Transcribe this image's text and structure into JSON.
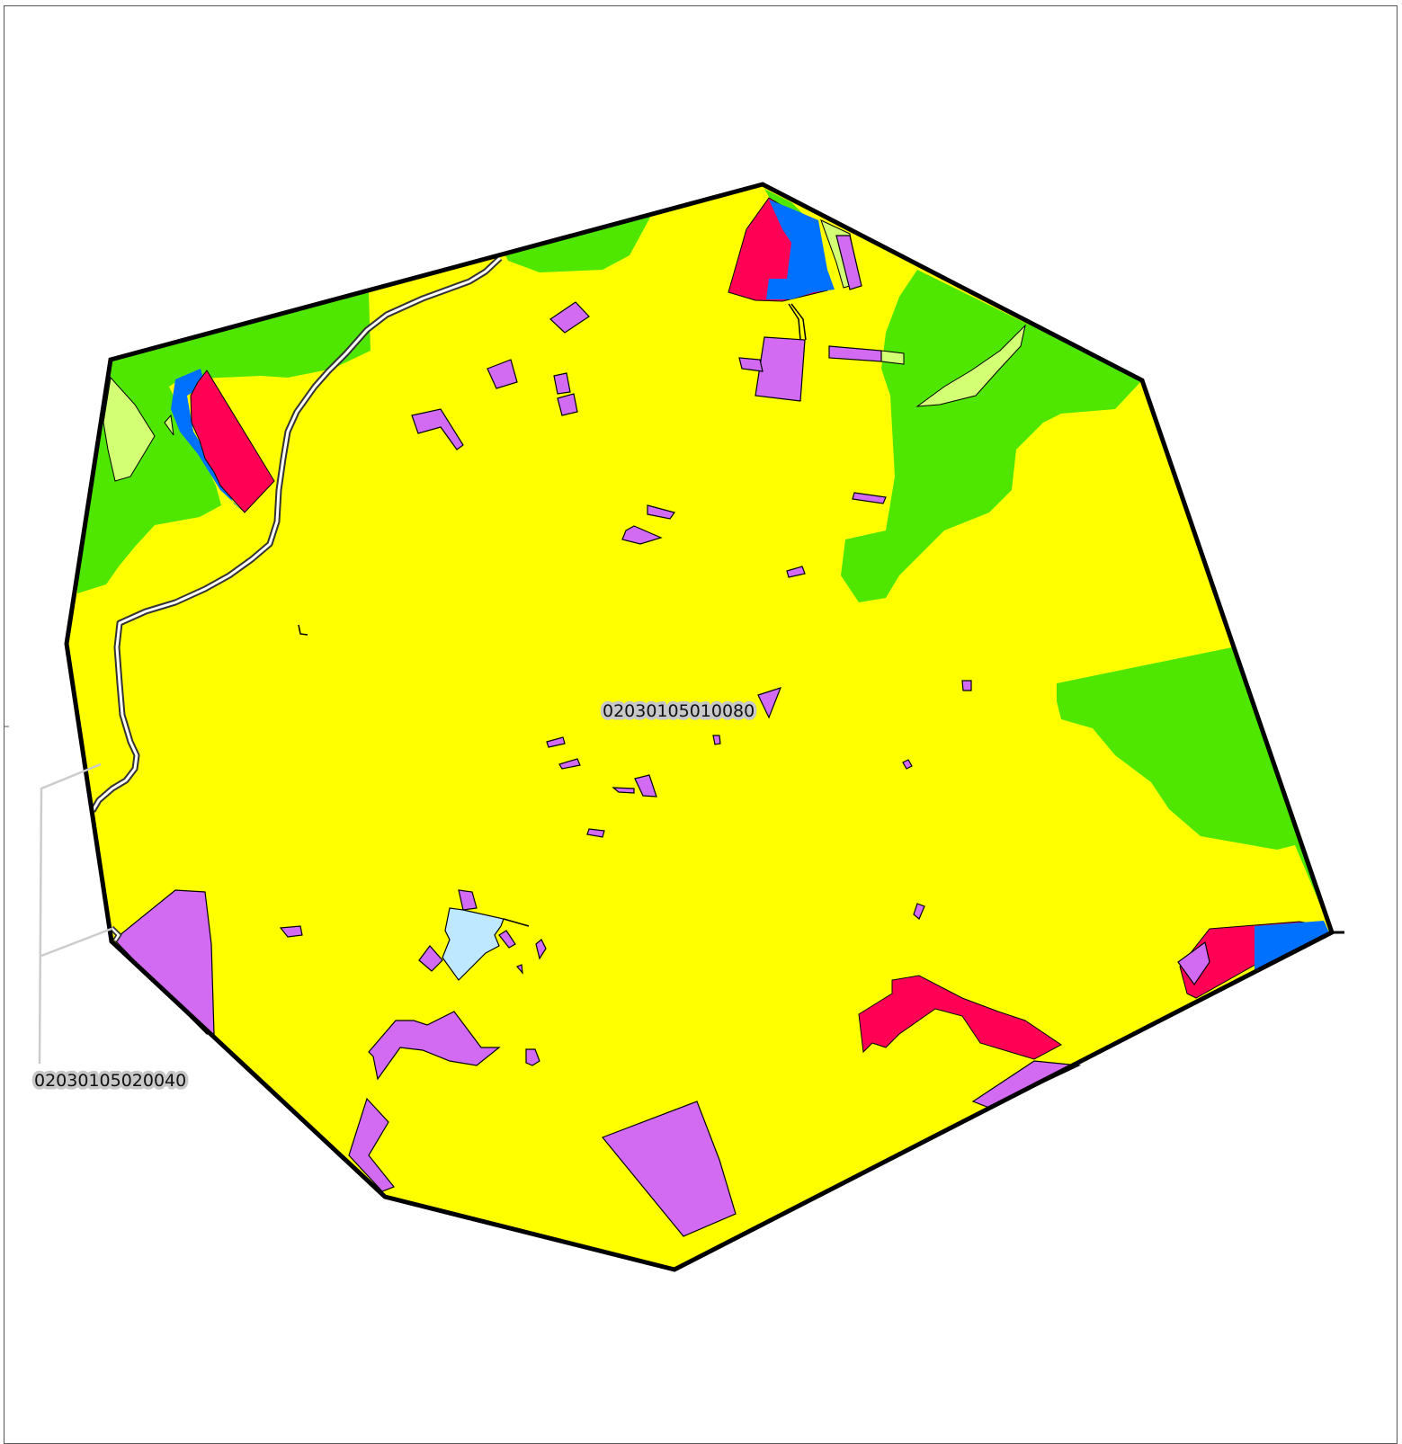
{
  "map": {
    "labels": {
      "center_unit": "02030105010080",
      "neighbor_unit": "02030105020040"
    },
    "colors": {
      "background": "#ffffff",
      "base_fill": "#ffff00",
      "forest": "#4fe600",
      "grassland": "#d2ff73",
      "wetland_blue": "#0070ff",
      "developed_red": "#ff0055",
      "magenta": "#d36bf2",
      "water_light": "#bee8ff",
      "boundary": "#000000",
      "road_casing": "#333333",
      "leader_line": "#cccccc"
    },
    "icons": [
      "watershed-boundary",
      "road-line",
      "leader-line"
    ]
  }
}
